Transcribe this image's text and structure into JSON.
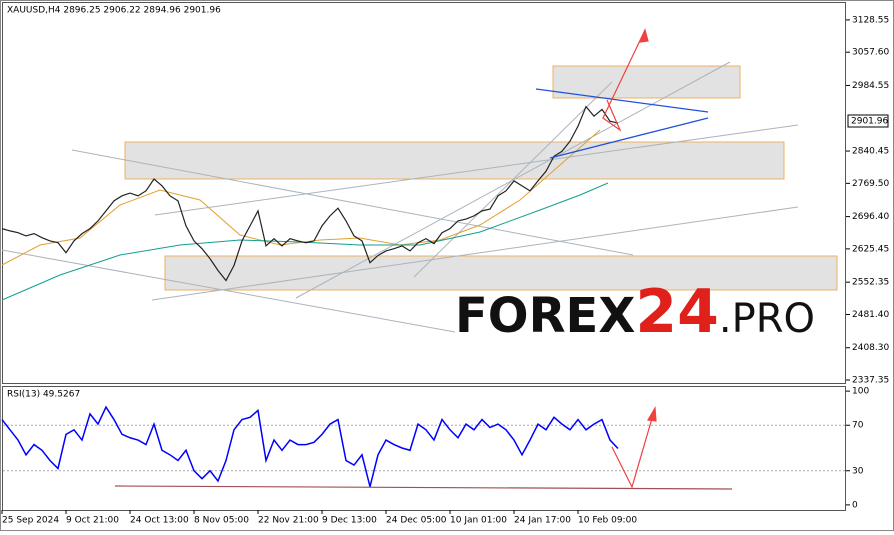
{
  "chart_data": [
    {
      "type": "line",
      "title": "XAUUSD,H4  2896.25 2906.22 2894.96 2901.96",
      "price_tag": "2901.96",
      "watermark": [
        "FOREX",
        "24",
        ".PRO"
      ],
      "categories": [
        "25 Sep 2024",
        null,
        null,
        null,
        null,
        null,
        null,
        null,
        "9 Oct 21:00",
        null,
        null,
        null,
        null,
        null,
        null,
        null,
        "24 Oct 13:00",
        null,
        null,
        null,
        null,
        null,
        null,
        null,
        "8 Nov 05:00",
        null,
        null,
        null,
        null,
        null,
        null,
        null,
        "22 Nov 21:00",
        null,
        null,
        null,
        null,
        null,
        null,
        null,
        "9 Dec 13:00",
        null,
        null,
        null,
        null,
        null,
        null,
        null,
        "24 Dec 05:00",
        null,
        null,
        null,
        null,
        null,
        null,
        null,
        "10 Jan 01:00",
        null,
        null,
        null,
        null,
        null,
        null,
        null,
        "24 Jan 17:00",
        null,
        null,
        null,
        null,
        null,
        null,
        null,
        "10 Feb 09:00",
        null,
        null,
        null,
        null,
        null
      ],
      "series": [
        {
          "name": "XAUUSD",
          "color": "#222222",
          "values": [
            2670,
            2665,
            2661,
            2654,
            2659,
            2650,
            2643,
            2639,
            2617,
            2643,
            2659,
            2670,
            2687,
            2709,
            2731,
            2742,
            2748,
            2742,
            2753,
            2779,
            2764,
            2742,
            2731,
            2676,
            2643,
            2626,
            2604,
            2578,
            2556,
            2589,
            2643,
            2676,
            2709,
            2632,
            2648,
            2632,
            2648,
            2643,
            2639,
            2643,
            2676,
            2698,
            2715,
            2687,
            2654,
            2643,
            2595,
            2611,
            2621,
            2626,
            2632,
            2621,
            2639,
            2648,
            2637,
            2661,
            2670,
            2687,
            2691,
            2698,
            2709,
            2713,
            2742,
            2753,
            2775,
            2764,
            2753,
            2775,
            2796,
            2829,
            2840,
            2862,
            2895,
            2938,
            2917,
            2932,
            2906,
            2901.96
          ]
        }
      ],
      "ylim": [
        2330.8,
        3167.9
      ],
      "yticks": [
        {
          "value": 2337.35,
          "label": "2337.35"
        },
        {
          "value": 2408.3,
          "label": "2408.30"
        },
        {
          "value": 2481.4,
          "label": "2481.40"
        },
        2552.35,
        2625.45,
        {
          "value": 2696.4,
          "label": "2696.40"
        },
        {
          "value": 2769.5,
          "label": "2769.50"
        },
        2840.45,
        2984.55,
        {
          "value": 3057.6,
          "label": "3057.60"
        },
        3128.55
      ]
    },
    {
      "type": "line",
      "title": "RSI(13) 49.5267",
      "series": [
        {
          "name": "RSI(13)",
          "color": "#0000ff",
          "values": [
            75,
            66,
            57,
            44,
            53,
            48,
            39,
            32,
            62,
            66,
            57,
            80,
            71,
            86,
            75,
            62,
            59,
            57,
            53,
            71,
            48,
            44,
            39,
            48,
            30,
            23,
            30,
            21,
            39,
            66,
            75,
            77,
            83,
            39,
            57,
            48,
            57,
            53,
            53,
            55,
            62,
            71,
            75,
            39,
            35,
            44,
            16,
            44,
            57,
            53,
            50,
            48,
            71,
            66,
            57,
            75,
            66,
            59,
            71,
            66,
            75,
            68,
            71,
            66,
            57,
            44,
            57,
            71,
            66,
            77,
            71,
            66,
            75,
            66,
            71,
            75,
            57,
            49.5267
          ]
        }
      ],
      "ylim": [
        -4.5,
        104.5
      ],
      "yticks": [
        0,
        30,
        70,
        100
      ]
    }
  ]
}
